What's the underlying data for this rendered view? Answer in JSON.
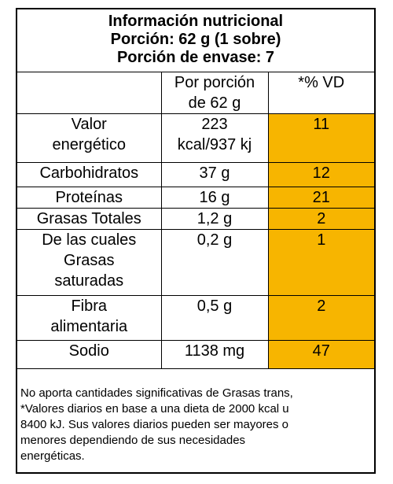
{
  "header": {
    "title": "Información nutricional",
    "portion": "Porción: 62 g (1 sobre)",
    "portions_per_package": "Porción de envase: 7"
  },
  "columns": {
    "per_portion_line1": "Por porción",
    "per_portion_line2": "de 62 g",
    "vd": "*% VD"
  },
  "rows": [
    {
      "name_lines": [
        "Valor",
        "energético"
      ],
      "amount_lines": [
        "223",
        "kcal/937 kj"
      ],
      "vd": "11"
    },
    {
      "name_lines": [
        "Carbohidratos"
      ],
      "amount_lines": [
        "37 g"
      ],
      "vd": "12"
    },
    {
      "name_lines": [
        "Proteínas"
      ],
      "amount_lines": [
        "16 g"
      ],
      "vd": "21"
    },
    {
      "name_lines": [
        "Grasas Totales"
      ],
      "amount_lines": [
        "1,2 g"
      ],
      "vd": "2"
    },
    {
      "name_lines": [
        "De las cuales",
        "Grasas",
        "saturadas"
      ],
      "amount_lines": [
        "0,2 g"
      ],
      "vd": "1"
    },
    {
      "name_lines": [
        "Fibra",
        "alimentaria"
      ],
      "amount_lines": [
        "0,5 g"
      ],
      "vd": "2"
    },
    {
      "name_lines": [
        "Sodio"
      ],
      "amount_lines": [
        "1138 mg"
      ],
      "vd": "47"
    }
  ],
  "footer": {
    "line1": "No aporta cantidades significativas de Grasas trans,",
    "line2": "*Valores diarios en base a una dieta de 2000 kcal u",
    "line3": "8400 kJ. Sus valores diarios pueden ser mayores o",
    "line4": "menores dependiendo de sus necesidades",
    "line5": "energéticas."
  },
  "colors": {
    "vd_highlight": "#f7b500"
  }
}
